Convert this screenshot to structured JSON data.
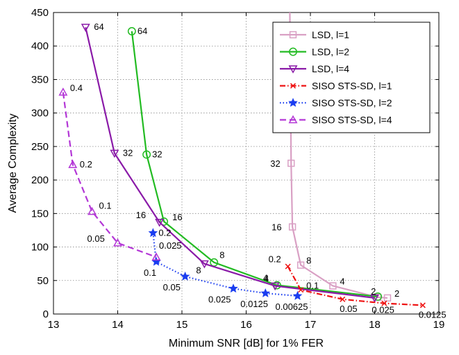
{
  "chart_data": {
    "type": "line",
    "xlabel": "Minimum SNR [dB] for 1% FER",
    "ylabel": "Average Complexity",
    "xlim": [
      13,
      19
    ],
    "ylim": [
      0,
      450
    ],
    "xticks": [
      13,
      14,
      15,
      16,
      17,
      18,
      19
    ],
    "yticks": [
      0,
      50,
      100,
      150,
      200,
      250,
      300,
      350,
      400,
      450
    ],
    "grid": true,
    "legend_position": "top-right",
    "series": [
      {
        "name": "LSD, l=1",
        "color": "#d9a0c4",
        "dash": "solid",
        "marker": "square",
        "points": [
          {
            "x": 16.68,
            "y": 450,
            "label": null
          },
          {
            "x": 16.7,
            "y": 225,
            "label": "32"
          },
          {
            "x": 16.72,
            "y": 130,
            "label": "16"
          },
          {
            "x": 16.85,
            "y": 73,
            "label": "8"
          },
          {
            "x": 17.35,
            "y": 42,
            "label": "4"
          },
          {
            "x": 18.05,
            "y": 25,
            "label": "2"
          },
          {
            "x": 18.2,
            "y": 24,
            "label": "2"
          }
        ]
      },
      {
        "name": "LSD, l=2",
        "color": "#22bb22",
        "dash": "solid",
        "marker": "circle",
        "points": [
          {
            "x": 14.22,
            "y": 422,
            "label": "64"
          },
          {
            "x": 14.45,
            "y": 238,
            "label": "32"
          },
          {
            "x": 14.72,
            "y": 138,
            "label": "16"
          },
          {
            "x": 15.5,
            "y": 77,
            "label": "8"
          },
          {
            "x": 16.48,
            "y": 43,
            "label": "4"
          },
          {
            "x": 18.05,
            "y": 26,
            "label": null
          }
        ]
      },
      {
        "name": "LSD, l=4",
        "color": "#8a1aa8",
        "dash": "solid",
        "marker": "triangle-down",
        "points": [
          {
            "x": 13.5,
            "y": 428,
            "label": "64"
          },
          {
            "x": 13.95,
            "y": 240,
            "label": "32"
          },
          {
            "x": 14.65,
            "y": 137,
            "label": "16"
          },
          {
            "x": 15.35,
            "y": 75,
            "label": "8"
          },
          {
            "x": 16.45,
            "y": 42,
            "label": "4"
          },
          {
            "x": 18.0,
            "y": 24,
            "label": null
          }
        ]
      },
      {
        "name": "SISO STS-SD, l=1",
        "color": "#ee1111",
        "dash": "dashdot",
        "marker": "x",
        "points": [
          {
            "x": 16.65,
            "y": 71,
            "label": "0.2"
          },
          {
            "x": 16.85,
            "y": 36,
            "label": "0.1"
          },
          {
            "x": 17.5,
            "y": 22,
            "label": "0.05"
          },
          {
            "x": 18.15,
            "y": 16,
            "label": "0.025"
          },
          {
            "x": 18.75,
            "y": 13,
            "label": "0.0125"
          }
        ]
      },
      {
        "name": "SISO STS-SD, l=2",
        "color": "#1a3df0",
        "dash": "dotted",
        "marker": "star",
        "points": [
          {
            "x": 14.55,
            "y": 121,
            "label": "0.2"
          },
          {
            "x": 14.6,
            "y": 78,
            "label": "0.1"
          },
          {
            "x": 15.05,
            "y": 56,
            "label": "0.05"
          },
          {
            "x": 15.8,
            "y": 38,
            "label": "0.025"
          },
          {
            "x": 16.3,
            "y": 31,
            "label": "0.0125"
          },
          {
            "x": 16.8,
            "y": 27,
            "label": "0.00625"
          }
        ]
      },
      {
        "name": "SISO STS-SD, l=4",
        "color": "#b336d6",
        "dash": "dashed",
        "marker": "triangle-up",
        "points": [
          {
            "x": 13.15,
            "y": 331,
            "label": "0.4"
          },
          {
            "x": 13.3,
            "y": 223,
            "label": "0.2"
          },
          {
            "x": 13.6,
            "y": 153,
            "label": "0.1"
          },
          {
            "x": 14.0,
            "y": 106,
            "label": "0.05"
          },
          {
            "x": 14.6,
            "y": 85,
            "label": "0.025"
          }
        ]
      }
    ]
  }
}
